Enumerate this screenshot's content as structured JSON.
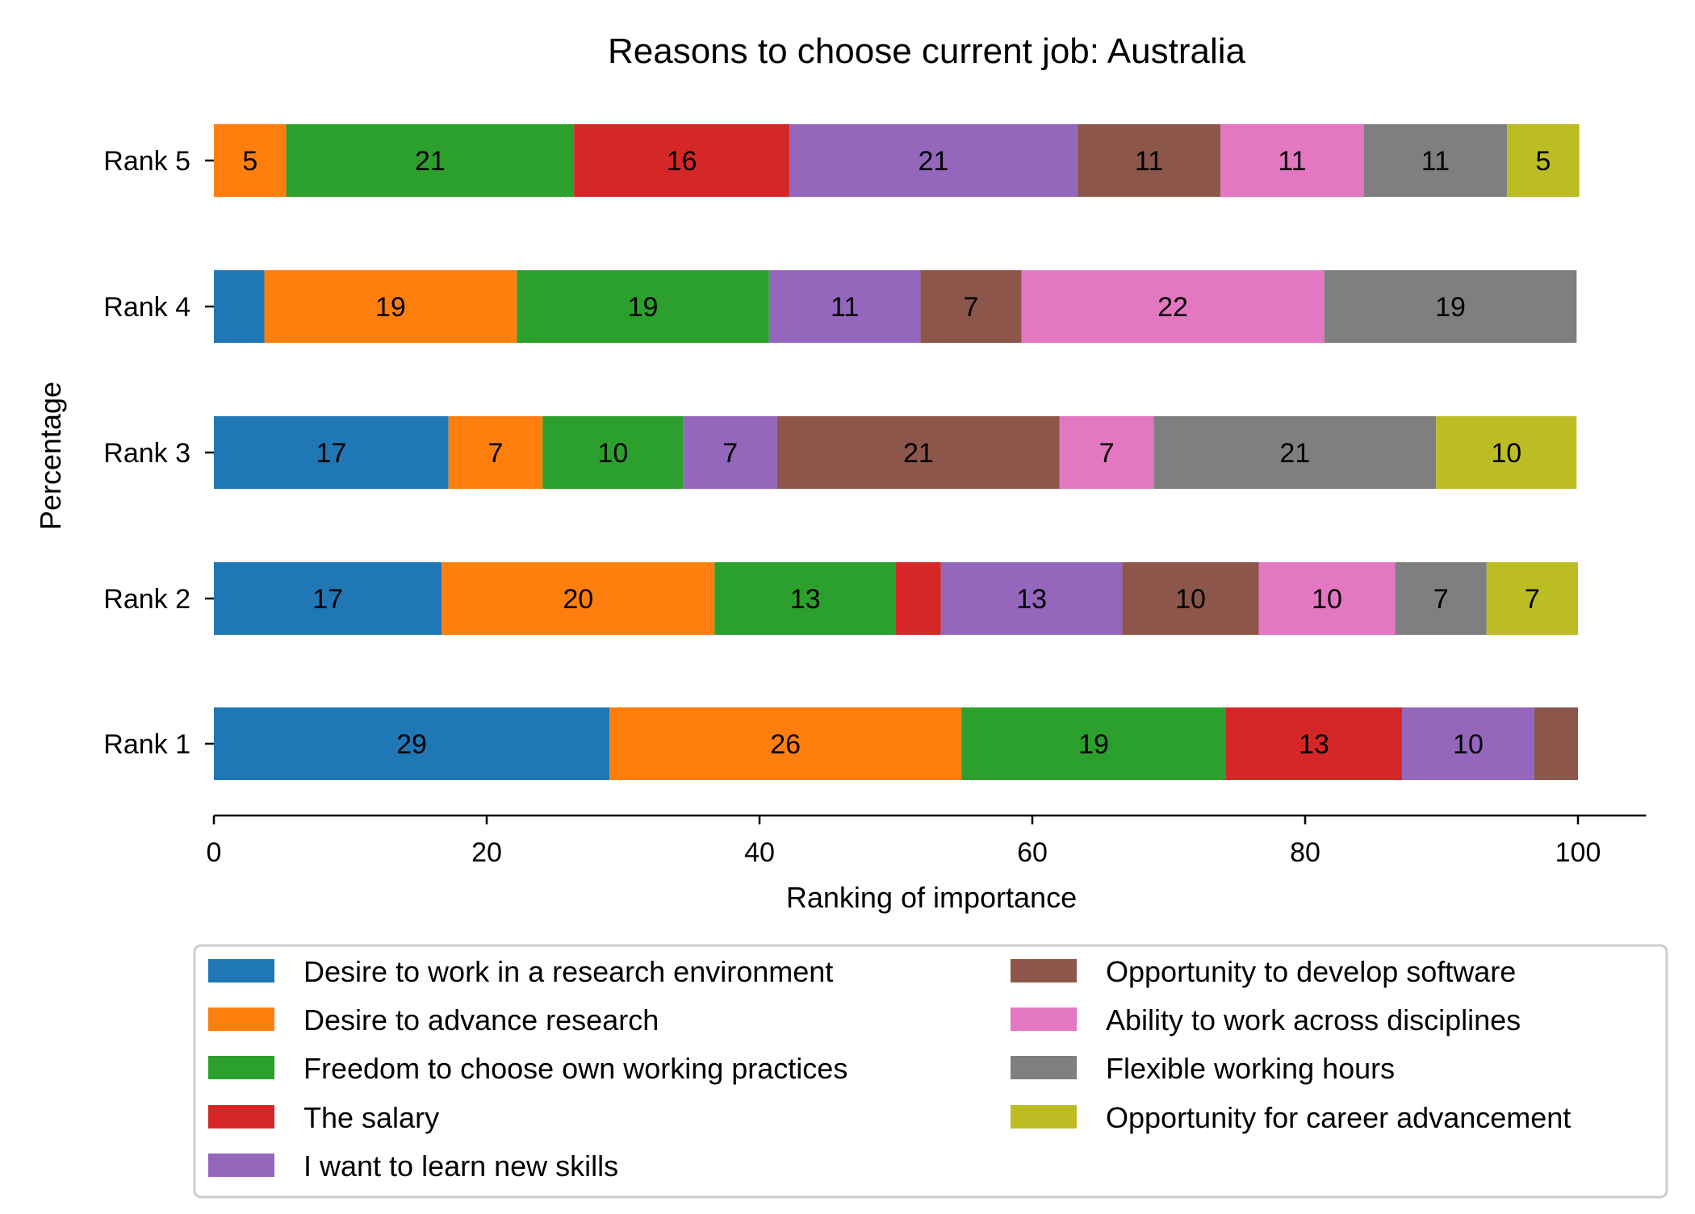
{
  "chart_data": {
    "type": "bar",
    "orientation": "horizontal",
    "stacked": true,
    "title": "Reasons to choose current job: Australia",
    "xlabel": "Ranking of importance",
    "ylabel": "Percentage",
    "xlim": [
      0,
      105
    ],
    "xticks": [
      0,
      20,
      40,
      60,
      80,
      100
    ],
    "categories": [
      "Rank 1",
      "Rank 2",
      "Rank 3",
      "Rank 4",
      "Rank 5"
    ],
    "grid": false,
    "legend_position": "bottom",
    "series": [
      {
        "name": "Desire to work in a research environment",
        "color": "#1f77b4",
        "values": [
          29,
          16.7,
          17.2,
          3.7,
          0
        ]
      },
      {
        "name": "Desire to advance research",
        "color": "#ff7f0e",
        "values": [
          25.8,
          20,
          6.9,
          18.5,
          5.3
        ]
      },
      {
        "name": "Freedom to choose own working practices",
        "color": "#2ca02c",
        "values": [
          19.4,
          13.3,
          10.3,
          18.5,
          21.1
        ]
      },
      {
        "name": "The salary",
        "color": "#d62728",
        "values": [
          12.9,
          3.3,
          0,
          0,
          15.8
        ]
      },
      {
        "name": "I want to learn new skills",
        "color": "#9467bd",
        "values": [
          9.7,
          13.3,
          6.9,
          11.1,
          21.1
        ]
      },
      {
        "name": "Opportunity to develop software",
        "color": "#8c564b",
        "values": [
          3.2,
          10,
          20.7,
          7.4,
          10.5
        ]
      },
      {
        "name": "Ability to work across disciplines",
        "color": "#e377c2",
        "values": [
          0,
          10,
          6.9,
          22.2,
          10.5
        ]
      },
      {
        "name": "Flexible working hours",
        "color": "#7f7f7f",
        "values": [
          0,
          6.7,
          20.7,
          18.5,
          10.5
        ]
      },
      {
        "name": "Opportunity for career advancement",
        "color": "#bcbd22",
        "values": [
          0,
          6.7,
          10.3,
          0,
          5.3
        ]
      }
    ],
    "data_labels": [
      [
        "29",
        "26",
        "19",
        "13",
        "10",
        "",
        "",
        "",
        ""
      ],
      [
        "17",
        "20",
        "13",
        "",
        "13",
        "10",
        "10",
        "7",
        "7"
      ],
      [
        "17",
        "7",
        "10",
        "",
        "7",
        "21",
        "7",
        "21",
        "10"
      ],
      [
        "",
        "19",
        "19",
        "",
        "11",
        "7",
        "22",
        "19",
        ""
      ],
      [
        "",
        "5",
        "21",
        "16",
        "21",
        "11",
        "11",
        "11",
        "5"
      ]
    ]
  }
}
